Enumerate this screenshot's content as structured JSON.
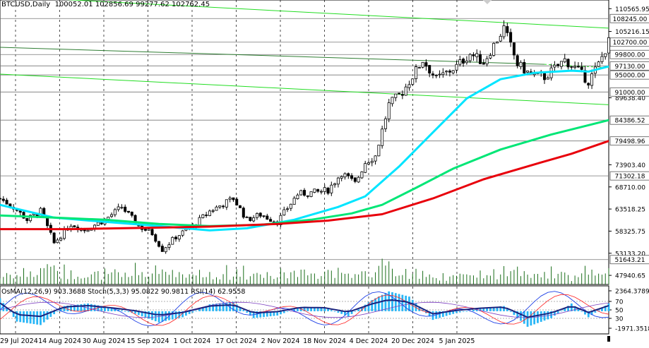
{
  "header": {
    "symbol_timeframe": "BTCUSD,Daily",
    "ohlc": "100052.01 102856.69 99277.62 102762.45"
  },
  "indicator_header": "OsMA(12,26,9) 903.3688 Stoch(5,3,3) 95.0822 90.9811 RSI(14) 62.9558",
  "colors": {
    "background": "#ffffff",
    "candle": "#000000",
    "ma_fast": "#00e5ff",
    "ma_mid": "#00e676",
    "ma_slow": "#e8000b",
    "channel_lines": "#22dd22",
    "osma_hist": "#29b6f6",
    "macd_line": "#1a237e",
    "stoch_main": "#1e40e6",
    "stoch_signal": "#ff2020",
    "rsi": "#7b3fbf"
  },
  "chart_data": [
    {
      "type": "candlestick",
      "title": "BTCUSD,Daily",
      "x_categories": [
        "29 Jul 2024",
        "14 Aug 2024",
        "30 Aug 2024",
        "15 Sep 2024",
        "1 Oct 2024",
        "17 Oct 2024",
        "2 Nov 2024",
        "18 Nov 2024",
        "4 Dec 2024",
        "20 Dec 2024",
        "5 Jan 2025"
      ],
      "x_date_range": [
        "2024-07-20",
        "2025-01-16"
      ],
      "y_ticks": [
        110565.95,
        105216.15,
        89638.4,
        73903.4,
        68710.0,
        63518.25,
        58325.75,
        53133.2,
        47940.65
      ],
      "y_price_labels": [
        {
          "value": 108245.0,
          "label": "108245.00"
        },
        {
          "value": 102700.0,
          "label": "102700.00"
        },
        {
          "value": 99800.0,
          "label": "99800.00"
        },
        {
          "value": 97130.0,
          "label": "97130.00"
        },
        {
          "value": 95000.0,
          "label": "95000.00"
        },
        {
          "value": 91000.0,
          "label": "91000.00"
        },
        {
          "value": 84386.52,
          "label": "84386.52"
        },
        {
          "value": 79498.96,
          "label": "79498.96"
        },
        {
          "value": 71302.18,
          "label": "71302.18"
        },
        {
          "value": 51643.21,
          "label": "51643.21"
        }
      ],
      "ylim": [
        45800,
        112600
      ],
      "close_path_dates": [
        "2024-07-20",
        "2024-07-24",
        "2024-07-28",
        "2024-08-01",
        "2024-08-05",
        "2024-08-10",
        "2024-08-14",
        "2024-08-20",
        "2024-08-25",
        "2024-08-30",
        "2024-09-03",
        "2024-09-06",
        "2024-09-10",
        "2024-09-15",
        "2024-09-20",
        "2024-09-27",
        "2024-10-01",
        "2024-10-05",
        "2024-10-10",
        "2024-10-16",
        "2024-10-22",
        "2024-10-25",
        "2024-10-29",
        "2024-11-02",
        "2024-11-05",
        "2024-11-08",
        "2024-11-12",
        "2024-11-16",
        "2024-11-22",
        "2024-11-26",
        "2024-12-02",
        "2024-12-06",
        "2024-12-10",
        "2024-12-16",
        "2024-12-20",
        "2024-12-24",
        "2024-12-28",
        "2025-01-03",
        "2025-01-07",
        "2025-01-10",
        "2025-01-13",
        "2025-01-16"
      ],
      "close_path_values": [
        66000,
        64000,
        61000,
        63000,
        55500,
        60000,
        58600,
        61000,
        64000,
        59500,
        57800,
        54000,
        57000,
        59500,
        63000,
        66000,
        61000,
        62200,
        60500,
        67000,
        67500,
        68000,
        72000,
        69500,
        74500,
        76000,
        88000,
        91000,
        98500,
        94000,
        97000,
        100000,
        98000,
        106000,
        97500,
        95000,
        94500,
        98500,
        96000,
        93500,
        97500,
        102762
      ]
    },
    {
      "type": "line",
      "series": [
        {
          "dates": [
            "2024-07-20",
            "2024-08-05",
            "2024-08-20",
            "2024-09-05",
            "2024-09-20",
            "2024-10-01",
            "2024-10-15",
            "2024-10-28",
            "2024-11-05",
            "2024-11-15",
            "2024-11-25",
            "2024-12-05",
            "2024-12-15",
            "2024-12-25",
            "2025-01-05",
            "2025-01-10",
            "2025-01-16"
          ],
          "values": [
            64500,
            61500,
            60500,
            59500,
            58500,
            59000,
            61000,
            64000,
            66500,
            73500,
            81500,
            89500,
            94000,
            95500,
            96000,
            95800,
            97000
          ]
        },
        {
          "dates": [
            "2024-07-20",
            "2024-08-05",
            "2024-08-20",
            "2024-09-05",
            "2024-09-20",
            "2024-10-05",
            "2024-10-20",
            "2024-11-01",
            "2024-11-10",
            "2024-11-20",
            "2024-12-01",
            "2024-12-15",
            "2024-12-30",
            "2025-01-16"
          ],
          "values": [
            62000,
            61500,
            61000,
            60000,
            59500,
            59800,
            61000,
            62500,
            64500,
            68500,
            73000,
            77500,
            81000,
            84386.52
          ]
        },
        {
          "dates": [
            "2024-07-20",
            "2024-08-10",
            "2024-09-01",
            "2024-09-20",
            "2024-10-10",
            "2024-10-25",
            "2024-11-10",
            "2024-11-25",
            "2024-12-10",
            "2024-12-25",
            "2025-01-05",
            "2025-01-16"
          ],
          "values": [
            58800,
            58800,
            59100,
            59400,
            60000,
            60800,
            62300,
            66000,
            70500,
            74000,
            76500,
            79498.96
          ]
        }
      ]
    },
    {
      "type": "line",
      "title": "OsMA(12,26,9) 903.3688 Stoch(5,3,3) 95.0822 90.9811 RSI(14) 62.9558",
      "y_labels": [
        "2364.3789",
        "70",
        "50",
        "30",
        "-1971.3518"
      ],
      "osma_histogram": [
        {
          "date": "2024-07-20",
          "value": 1500
        },
        {
          "date": "2024-07-25",
          "value": -1200
        },
        {
          "date": "2024-08-01",
          "value": -1600
        },
        {
          "date": "2024-08-08",
          "value": 600
        },
        {
          "date": "2024-08-15",
          "value": 900
        },
        {
          "date": "2024-08-22",
          "value": 400
        },
        {
          "date": "2024-08-29",
          "value": -300
        },
        {
          "date": "2024-09-05",
          "value": -1300
        },
        {
          "date": "2024-09-12",
          "value": -700
        },
        {
          "date": "2024-09-20",
          "value": 800
        },
        {
          "date": "2024-09-27",
          "value": 1100
        },
        {
          "date": "2024-10-03",
          "value": -800
        },
        {
          "date": "2024-10-10",
          "value": -500
        },
        {
          "date": "2024-10-17",
          "value": 500
        },
        {
          "date": "2024-10-24",
          "value": 400
        },
        {
          "date": "2024-10-31",
          "value": -600
        },
        {
          "date": "2024-11-07",
          "value": 1300
        },
        {
          "date": "2024-11-12",
          "value": 2300
        },
        {
          "date": "2024-11-18",
          "value": 1700
        },
        {
          "date": "2024-11-25",
          "value": -1000
        },
        {
          "date": "2024-12-02",
          "value": -200
        },
        {
          "date": "2024-12-09",
          "value": 300
        },
        {
          "date": "2024-12-16",
          "value": 600
        },
        {
          "date": "2024-12-23",
          "value": -1800
        },
        {
          "date": "2024-12-30",
          "value": -800
        },
        {
          "date": "2025-01-05",
          "value": 900
        },
        {
          "date": "2025-01-10",
          "value": -700
        },
        {
          "date": "2025-01-16",
          "value": 903.37
        }
      ]
    }
  ]
}
